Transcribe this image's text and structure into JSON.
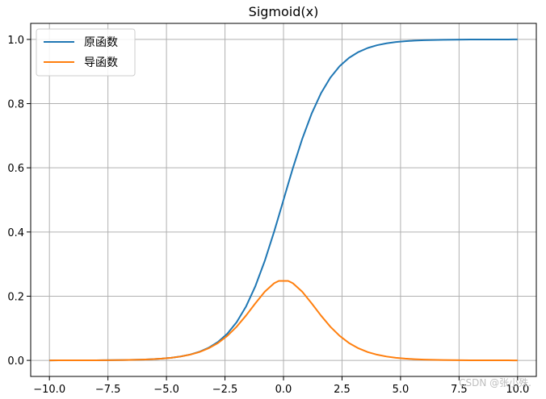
{
  "chart_data": {
    "type": "line",
    "title": "Sigmoid(x)",
    "xlabel": "",
    "ylabel": "",
    "xlim": [
      -10.8,
      10.8
    ],
    "ylim": [
      -0.05,
      1.05
    ],
    "xticks": [
      -10.0,
      -7.5,
      -5.0,
      -2.5,
      0.0,
      2.5,
      5.0,
      7.5,
      10.0
    ],
    "xtick_labels": [
      "−10.0",
      "−7.5",
      "−5.0",
      "−2.5",
      "0.0",
      "2.5",
      "5.0",
      "7.5",
      "10.0"
    ],
    "yticks": [
      0.0,
      0.2,
      0.4,
      0.6,
      0.8,
      1.0
    ],
    "ytick_labels": [
      "0.0",
      "0.2",
      "0.4",
      "0.6",
      "0.8",
      "1.0"
    ],
    "grid": true,
    "legend_position": "upper-left",
    "x": [
      -10.0,
      -9.6,
      -9.2,
      -8.8,
      -8.4,
      -8.0,
      -7.6,
      -7.2,
      -6.8,
      -6.4,
      -6.0,
      -5.6,
      -5.2,
      -4.8,
      -4.4,
      -4.0,
      -3.6,
      -3.2,
      -2.8,
      -2.4,
      -2.0,
      -1.6,
      -1.2,
      -0.8,
      -0.4,
      -0.2,
      0.2,
      0.4,
      0.8,
      1.2,
      1.6,
      2.0,
      2.4,
      2.8,
      3.2,
      3.6,
      4.0,
      4.4,
      4.8,
      5.2,
      5.6,
      6.0,
      6.4,
      6.8,
      7.2,
      7.6,
      8.0,
      8.4,
      8.8,
      9.2,
      9.6,
      10.0
    ],
    "series": [
      {
        "name": "原函数",
        "color": "#1f77b4",
        "values": [
          0.0,
          0.0001,
          0.0001,
          0.0002,
          0.0002,
          0.0003,
          0.0005,
          0.0007,
          0.0011,
          0.0017,
          0.0025,
          0.0037,
          0.0055,
          0.0082,
          0.0121,
          0.018,
          0.0266,
          0.0392,
          0.0573,
          0.0832,
          0.1192,
          0.168,
          0.2315,
          0.31,
          0.4013,
          0.4502,
          0.5498,
          0.5987,
          0.69,
          0.7685,
          0.832,
          0.8808,
          0.9168,
          0.9427,
          0.9608,
          0.9734,
          0.982,
          0.9879,
          0.9918,
          0.9945,
          0.9963,
          0.9975,
          0.9983,
          0.9989,
          0.9993,
          0.9995,
          0.9997,
          0.9998,
          0.9998,
          0.9999,
          0.9999,
          1.0
        ]
      },
      {
        "name": "导函数",
        "color": "#ff7f0e",
        "values": [
          0.0,
          0.0001,
          0.0001,
          0.0002,
          0.0002,
          0.0003,
          0.0005,
          0.0007,
          0.0011,
          0.0017,
          0.0025,
          0.0037,
          0.0055,
          0.0081,
          0.012,
          0.0177,
          0.0259,
          0.0377,
          0.054,
          0.0763,
          0.105,
          0.1398,
          0.1779,
          0.2139,
          0.2403,
          0.2475,
          0.2475,
          0.2403,
          0.2139,
          0.1779,
          0.1398,
          0.105,
          0.0763,
          0.054,
          0.0377,
          0.0259,
          0.0177,
          0.012,
          0.0081,
          0.0055,
          0.0037,
          0.0025,
          0.0017,
          0.0011,
          0.0007,
          0.0005,
          0.0003,
          0.0002,
          0.0002,
          0.0001,
          0.0001,
          0.0
        ]
      }
    ]
  },
  "watermark": "CSDN @张小殊."
}
